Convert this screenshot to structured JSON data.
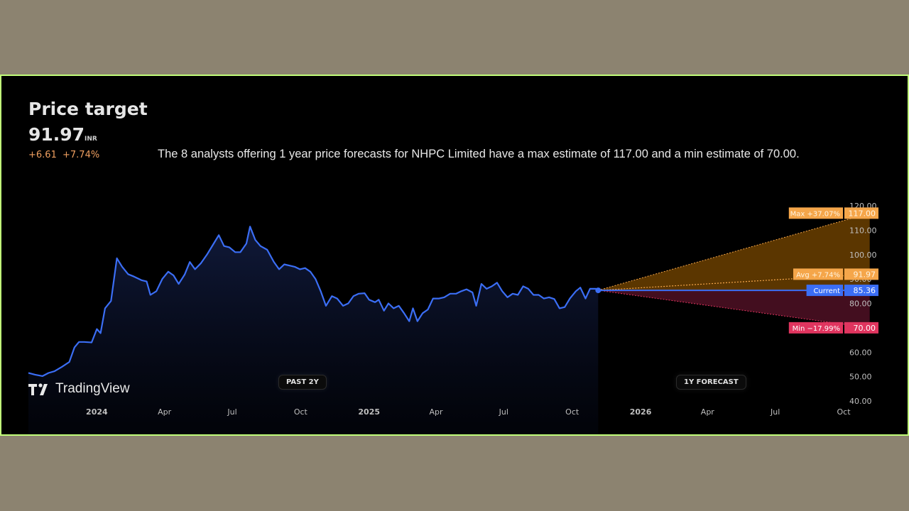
{
  "header": {
    "title": "Price target",
    "price": "91.97",
    "unit": "INR",
    "change": "+6.61",
    "change_pct": "+7.74%",
    "description": "The 8 analysts offering 1 year price forecasts for NHPC Limited have a max estimate of 117.00 and a min estimate of 70.00."
  },
  "branding": {
    "logo_text": "TradingView",
    "logo_icon": "tradingview-logo-icon"
  },
  "period_labels": {
    "past": "PAST 2Y",
    "forecast": "1Y FORECAST"
  },
  "colors": {
    "line": "#3b6ef5",
    "max": "#f5a64a",
    "avg": "#f5a64a",
    "min": "#e0355f",
    "current": "#3b6ef5",
    "axis_text": "#bfbfbf"
  },
  "chart_data": {
    "type": "line",
    "x_ticks": [
      "2024",
      "Apr",
      "Jul",
      "Oct",
      "2025",
      "Apr",
      "Jul",
      "Oct",
      "2026",
      "Apr",
      "Jul",
      "Oct"
    ],
    "y_ticks": [
      "120.00",
      "110.00",
      "100.00",
      "90.00",
      "80.00",
      "70.00",
      "60.00",
      "50.00",
      "40.00"
    ],
    "ylim": [
      40,
      120
    ],
    "xlim": [
      "2023-10-01",
      "2026-10-01"
    ],
    "series": [
      {
        "values": [
          [
            "2023-10-01",
            51.5
          ],
          [
            "2023-10-10",
            50.8
          ],
          [
            "2023-10-20",
            50.2
          ],
          [
            "2023-10-28",
            51.5
          ],
          [
            "2023-11-05",
            52.2
          ],
          [
            "2023-11-15",
            54
          ],
          [
            "2023-11-25",
            56
          ],
          [
            "2023-12-02",
            62
          ],
          [
            "2023-12-08",
            64.2
          ],
          [
            "2023-12-15",
            64.2
          ],
          [
            "2023-12-25",
            64
          ],
          [
            "2024-01-01",
            69.5
          ],
          [
            "2024-01-06",
            67.8
          ],
          [
            "2024-01-12",
            78
          ],
          [
            "2024-01-20",
            81
          ],
          [
            "2024-01-28",
            98.5
          ],
          [
            "2024-02-04",
            95
          ],
          [
            "2024-02-12",
            92
          ],
          [
            "2024-02-20",
            91
          ],
          [
            "2024-03-01",
            89.5
          ],
          [
            "2024-03-08",
            89
          ],
          [
            "2024-03-13",
            83.5
          ],
          [
            "2024-03-21",
            85
          ],
          [
            "2024-03-29",
            90
          ],
          [
            "2024-04-06",
            93
          ],
          [
            "2024-04-13",
            91.5
          ],
          [
            "2024-04-20",
            88
          ],
          [
            "2024-04-28",
            91.8
          ],
          [
            "2024-05-05",
            97
          ],
          [
            "2024-05-12",
            94
          ],
          [
            "2024-05-20",
            96.5
          ],
          [
            "2024-05-28",
            100
          ],
          [
            "2024-06-05",
            104
          ],
          [
            "2024-06-13",
            108
          ],
          [
            "2024-06-20",
            103.5
          ],
          [
            "2024-06-27",
            103
          ],
          [
            "2024-07-05",
            101
          ],
          [
            "2024-07-12",
            101
          ],
          [
            "2024-07-20",
            104.5
          ],
          [
            "2024-07-25",
            111.5
          ],
          [
            "2024-08-01",
            106
          ],
          [
            "2024-08-08",
            103.5
          ],
          [
            "2024-08-17",
            102
          ],
          [
            "2024-08-26",
            97
          ],
          [
            "2024-09-02",
            94
          ],
          [
            "2024-09-09",
            96
          ],
          [
            "2024-09-16",
            95.5
          ],
          [
            "2024-09-23",
            95
          ],
          [
            "2024-09-30",
            94
          ],
          [
            "2024-10-07",
            94.5
          ],
          [
            "2024-10-14",
            93
          ],
          [
            "2024-10-21",
            90
          ],
          [
            "2024-10-28",
            85
          ],
          [
            "2024-11-04",
            79
          ],
          [
            "2024-11-12",
            83
          ],
          [
            "2024-11-19",
            82
          ],
          [
            "2024-11-27",
            79
          ],
          [
            "2024-12-04",
            80
          ],
          [
            "2024-12-11",
            83
          ],
          [
            "2024-12-18",
            84
          ],
          [
            "2024-12-26",
            84.2
          ],
          [
            "2025-01-01",
            81.5
          ],
          [
            "2025-01-09",
            80.5
          ],
          [
            "2025-01-14",
            81.5
          ],
          [
            "2025-01-21",
            77
          ],
          [
            "2025-01-27",
            80
          ],
          [
            "2025-02-03",
            78
          ],
          [
            "2025-02-10",
            79
          ],
          [
            "2025-02-17",
            76
          ],
          [
            "2025-02-24",
            72.7
          ],
          [
            "2025-03-01",
            78
          ],
          [
            "2025-03-07",
            72.7
          ],
          [
            "2025-03-14",
            76
          ],
          [
            "2025-03-21",
            77.5
          ],
          [
            "2025-03-28",
            82
          ],
          [
            "2025-04-05",
            82
          ],
          [
            "2025-04-12",
            82.5
          ],
          [
            "2025-04-20",
            84
          ],
          [
            "2025-04-28",
            84
          ],
          [
            "2025-05-05",
            85
          ],
          [
            "2025-05-12",
            85.8
          ],
          [
            "2025-05-20",
            84.5
          ],
          [
            "2025-05-25",
            79
          ],
          [
            "2025-06-01",
            88
          ],
          [
            "2025-06-08",
            86
          ],
          [
            "2025-06-15",
            87
          ],
          [
            "2025-06-22",
            88.5
          ],
          [
            "2025-06-29",
            85
          ],
          [
            "2025-07-06",
            82.5
          ],
          [
            "2025-07-13",
            84
          ],
          [
            "2025-07-20",
            83.5
          ],
          [
            "2025-07-27",
            87
          ],
          [
            "2025-08-03",
            86
          ],
          [
            "2025-08-10",
            83.5
          ],
          [
            "2025-08-17",
            83.5
          ],
          [
            "2025-08-24",
            82
          ],
          [
            "2025-08-31",
            82.5
          ],
          [
            "2025-09-07",
            81.8
          ],
          [
            "2025-09-14",
            78
          ],
          [
            "2025-09-21",
            78.5
          ],
          [
            "2025-09-28",
            82
          ],
          [
            "2025-10-06",
            85
          ],
          [
            "2025-10-12",
            86.5
          ],
          [
            "2025-10-19",
            82
          ],
          [
            "2025-10-25",
            86
          ],
          [
            "2025-11-02",
            86
          ],
          [
            "2025-11-05",
            85.36
          ]
        ]
      }
    ],
    "forecast": {
      "start": [
        "2025-11-05",
        85.36
      ],
      "end_date": "2026-11-05",
      "max": {
        "label": "Max +37.07%",
        "value": 117.0,
        "value_label": "117.00"
      },
      "avg": {
        "label": "Avg +7.74%",
        "value": 91.97,
        "value_label": "91.97"
      },
      "current": {
        "label": "Current",
        "value": 85.36,
        "value_label": "85.36"
      },
      "min": {
        "label": "Min −17.99%",
        "value": 70.0,
        "value_label": "70.00"
      }
    },
    "grid": false,
    "legend": "none"
  }
}
